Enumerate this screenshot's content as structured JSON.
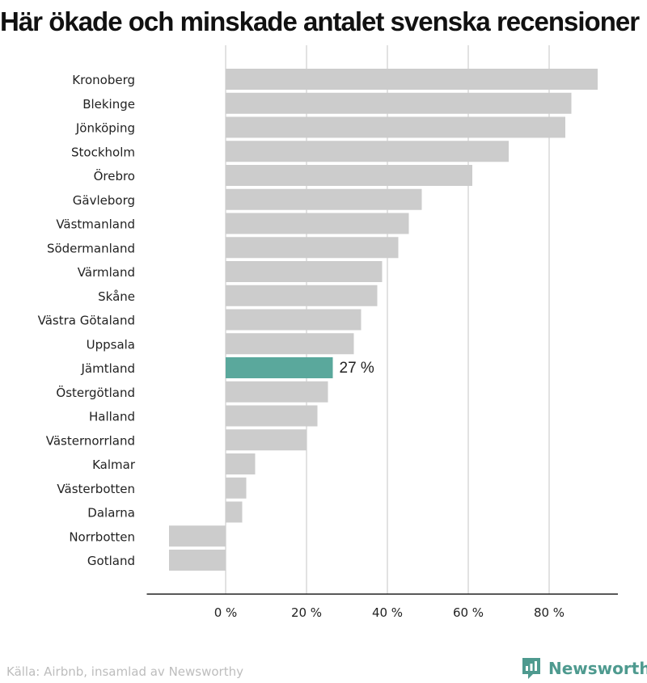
{
  "title": "Här ökade och minskade antalet svenska recensioner",
  "footer": {
    "source": "Källa: Airbnb, insamlad av Newsworthy",
    "brand": "Newsworthy"
  },
  "colors": {
    "bar": "#cccccc",
    "highlight": "#5aa89c",
    "grid": "#d9d9d9",
    "axis": "#222222",
    "brand": "#4e9a8f"
  },
  "chart_data": {
    "type": "bar",
    "orientation": "horizontal",
    "title": "Här ökade och minskade antalet svenska recensioner",
    "xlabel": "",
    "ylabel": "",
    "categories": [
      "Kronoberg",
      "Blekinge",
      "Jönköping",
      "Stockholm",
      "Örebro",
      "Gävleborg",
      "Västmanland",
      "Södermanland",
      "Värmland",
      "Skåne",
      "Västra Götaland",
      "Uppsala",
      "Jämtland",
      "Östergötland",
      "Halland",
      "Västernorrland",
      "Kalmar",
      "Västerbotten",
      "Dalarna",
      "Norrbotten",
      "Gotland"
    ],
    "values": [
      92,
      85.5,
      84,
      70,
      61,
      48.5,
      45.3,
      42.7,
      38.7,
      37.5,
      33.5,
      31.7,
      26.5,
      25.3,
      22.7,
      20,
      7.3,
      5.1,
      4.1,
      -14,
      -14
    ],
    "highlight": {
      "category": "Jämtland",
      "label": "27 %"
    },
    "xticks": [
      0,
      20,
      40,
      60,
      80
    ],
    "xtick_labels": [
      "0 %",
      "20 %",
      "40 %",
      "60 %",
      "80 %"
    ],
    "xlim": [
      -19.5,
      97
    ],
    "grid": true
  }
}
